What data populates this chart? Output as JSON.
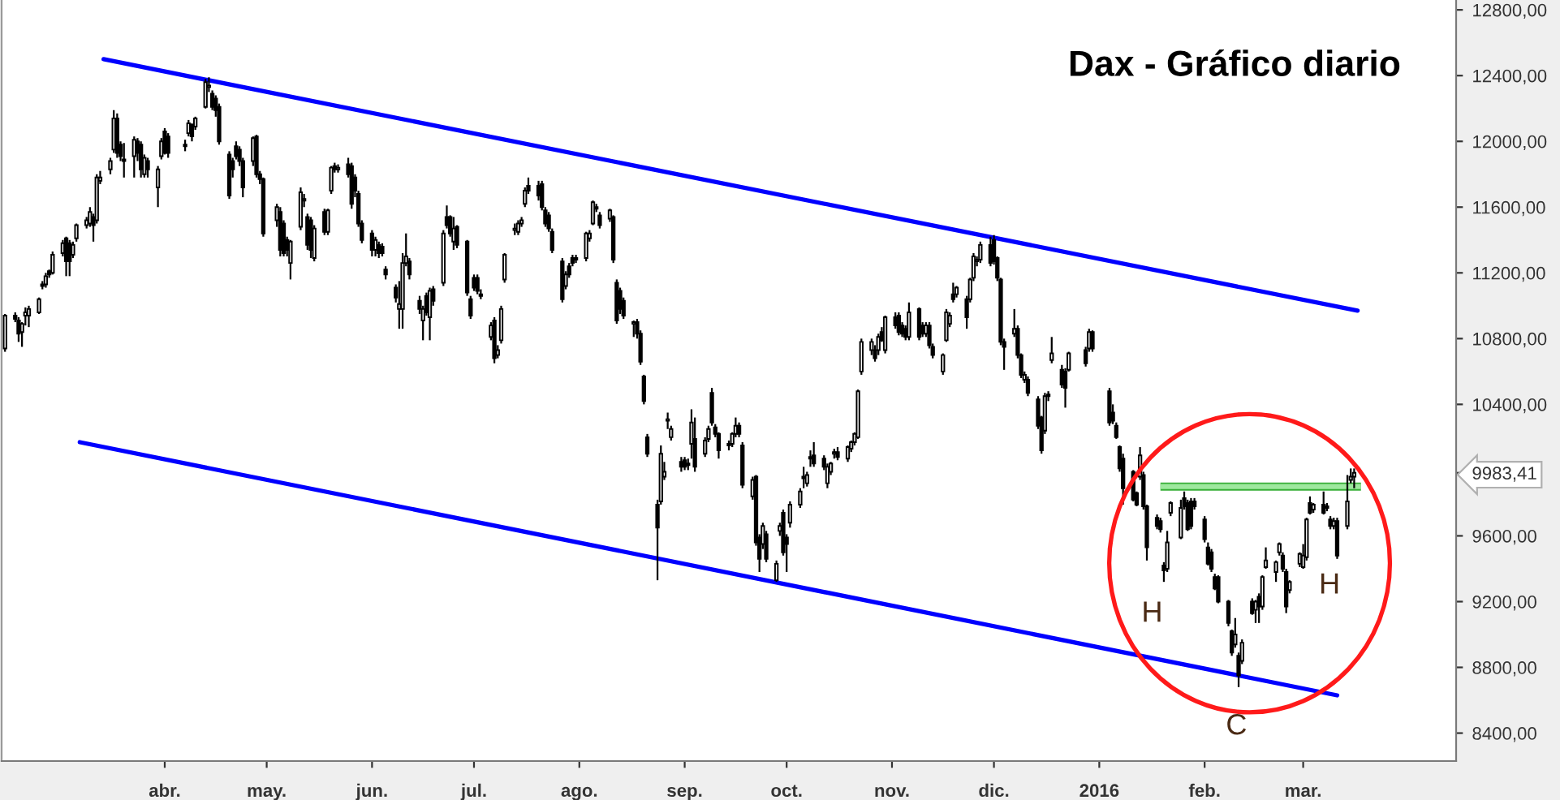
{
  "chart_data": {
    "type": "candlestick",
    "title": "Dax - Gráfico diario",
    "color": "#000000",
    "x": [
      "2015-02-13",
      "2015-02-16",
      "2015-02-17",
      "2015-02-18",
      "2015-02-19",
      "2015-02-20",
      "2015-02-23",
      "2015-02-24",
      "2015-02-25",
      "2015-02-26",
      "2015-02-27",
      "2015-03-02",
      "2015-03-03",
      "2015-03-04",
      "2015-03-05",
      "2015-03-06",
      "2015-03-09",
      "2015-03-10",
      "2015-03-11",
      "2015-03-12",
      "2015-03-13",
      "2015-03-16",
      "2015-03-17",
      "2015-03-18",
      "2015-03-19",
      "2015-03-20",
      "2015-03-23",
      "2015-03-24",
      "2015-03-25",
      "2015-03-26",
      "2015-03-27",
      "2015-03-30",
      "2015-03-31",
      "2015-04-01",
      "2015-04-02",
      "2015-04-07",
      "2015-04-08",
      "2015-04-09",
      "2015-04-10",
      "2015-04-13",
      "2015-04-14",
      "2015-04-15",
      "2015-04-16",
      "2015-04-17",
      "2015-04-20",
      "2015-04-21",
      "2015-04-22",
      "2015-04-23",
      "2015-04-24",
      "2015-04-27",
      "2015-04-28",
      "2015-04-29",
      "2015-04-30",
      "2015-05-04",
      "2015-05-05",
      "2015-05-06",
      "2015-05-07",
      "2015-05-08",
      "2015-05-11",
      "2015-05-12",
      "2015-05-13",
      "2015-05-14",
      "2015-05-15",
      "2015-05-18",
      "2015-05-19",
      "2015-05-20",
      "2015-05-21",
      "2015-05-22",
      "2015-05-25",
      "2015-05-26",
      "2015-05-27",
      "2015-05-28",
      "2015-05-29",
      "2015-06-01",
      "2015-06-02",
      "2015-06-03",
      "2015-06-04",
      "2015-06-05",
      "2015-06-08",
      "2015-06-09",
      "2015-06-10",
      "2015-06-11",
      "2015-06-12",
      "2015-06-15",
      "2015-06-16",
      "2015-06-17",
      "2015-06-18",
      "2015-06-19",
      "2015-06-22",
      "2015-06-23",
      "2015-06-24",
      "2015-06-25",
      "2015-06-26",
      "2015-06-29",
      "2015-06-30",
      "2015-07-01",
      "2015-07-02",
      "2015-07-03",
      "2015-07-06",
      "2015-07-07",
      "2015-07-08",
      "2015-07-09",
      "2015-07-10",
      "2015-07-13",
      "2015-07-14",
      "2015-07-15",
      "2015-07-16",
      "2015-07-17",
      "2015-07-20",
      "2015-07-21",
      "2015-07-22",
      "2015-07-23",
      "2015-07-24",
      "2015-07-27",
      "2015-07-28",
      "2015-07-29",
      "2015-07-30",
      "2015-07-31",
      "2015-08-03",
      "2015-08-04",
      "2015-08-05",
      "2015-08-06",
      "2015-08-07",
      "2015-08-10",
      "2015-08-11",
      "2015-08-12",
      "2015-08-13",
      "2015-08-14",
      "2015-08-17",
      "2015-08-18",
      "2015-08-19",
      "2015-08-20",
      "2015-08-21",
      "2015-08-24",
      "2015-08-25",
      "2015-08-26",
      "2015-08-27",
      "2015-08-28",
      "2015-08-31",
      "2015-09-01",
      "2015-09-02",
      "2015-09-03",
      "2015-09-04",
      "2015-09-07",
      "2015-09-08",
      "2015-09-09",
      "2015-09-10",
      "2015-09-11",
      "2015-09-14",
      "2015-09-15",
      "2015-09-16",
      "2015-09-17",
      "2015-09-18",
      "2015-09-21",
      "2015-09-22",
      "2015-09-23",
      "2015-09-24",
      "2015-09-25",
      "2015-09-28",
      "2015-09-29",
      "2015-09-30",
      "2015-10-01",
      "2015-10-02",
      "2015-10-05",
      "2015-10-06",
      "2015-10-07",
      "2015-10-08",
      "2015-10-09",
      "2015-10-12",
      "2015-10-13",
      "2015-10-14",
      "2015-10-15",
      "2015-10-16",
      "2015-10-19",
      "2015-10-20",
      "2015-10-21",
      "2015-10-22",
      "2015-10-23",
      "2015-10-26",
      "2015-10-27",
      "2015-10-28",
      "2015-10-29",
      "2015-10-30",
      "2015-11-02",
      "2015-11-03",
      "2015-11-04",
      "2015-11-05",
      "2015-11-06",
      "2015-11-09",
      "2015-11-10",
      "2015-11-11",
      "2015-11-12",
      "2015-11-13",
      "2015-11-16",
      "2015-11-17",
      "2015-11-18",
      "2015-11-19",
      "2015-11-20",
      "2015-11-23",
      "2015-11-24",
      "2015-11-25",
      "2015-11-26",
      "2015-11-27",
      "2015-11-30",
      "2015-12-01",
      "2015-12-02",
      "2015-12-03",
      "2015-12-04",
      "2015-12-07",
      "2015-12-08",
      "2015-12-09",
      "2015-12-10",
      "2015-12-11",
      "2015-12-14",
      "2015-12-15",
      "2015-12-16",
      "2015-12-17",
      "2015-12-18",
      "2015-12-21",
      "2015-12-22",
      "2015-12-23",
      "2015-12-28",
      "2015-12-29",
      "2015-12-30",
      "2016-01-04",
      "2016-01-05",
      "2016-01-06",
      "2016-01-07",
      "2016-01-08",
      "2016-01-11",
      "2016-01-12",
      "2016-01-13",
      "2016-01-14",
      "2016-01-15",
      "2016-01-18",
      "2016-01-19",
      "2016-01-20",
      "2016-01-21",
      "2016-01-22",
      "2016-01-25",
      "2016-01-26",
      "2016-01-27",
      "2016-01-28",
      "2016-01-29",
      "2016-02-01",
      "2016-02-02",
      "2016-02-03",
      "2016-02-04",
      "2016-02-05",
      "2016-02-08",
      "2016-02-09",
      "2016-02-10",
      "2016-02-11",
      "2016-02-12",
      "2016-02-15",
      "2016-02-16",
      "2016-02-17",
      "2016-02-18",
      "2016-02-19",
      "2016-02-22",
      "2016-02-23",
      "2016-02-24",
      "2016-02-25",
      "2016-02-26",
      "2016-02-29",
      "2016-03-01",
      "2016-03-02",
      "2016-03-03",
      "2016-03-04",
      "2016-03-07",
      "2016-03-08",
      "2016-03-09",
      "2016-03-10",
      "2016-03-11",
      "2016-03-14",
      "2016-03-15",
      "2016-03-16"
    ],
    "ohlc": [
      [
        10740,
        10950,
        10720,
        10940
      ],
      [
        10940,
        10960,
        10900,
        10920
      ],
      [
        10910,
        10930,
        10780,
        10830
      ],
      [
        10840,
        10900,
        10750,
        10890
      ],
      [
        10940,
        10990,
        10880,
        10960
      ],
      [
        10940,
        11000,
        10870,
        10980
      ],
      [
        10960,
        11050,
        10950,
        11040
      ],
      [
        11120,
        11150,
        11100,
        11130
      ],
      [
        11130,
        11200,
        11110,
        11180
      ],
      [
        11210,
        11220,
        11170,
        11190
      ],
      [
        11200,
        11330,
        11190,
        11310
      ],
      [
        11320,
        11400,
        11300,
        11380
      ],
      [
        11410,
        11420,
        11180,
        11270
      ],
      [
        11380,
        11400,
        11180,
        11270
      ],
      [
        11310,
        11390,
        11290,
        11370
      ],
      [
        11410,
        11500,
        11390,
        11490
      ],
      [
        11490,
        11540,
        11470,
        11520
      ],
      [
        11500,
        11600,
        11480,
        11570
      ],
      [
        11540,
        11560,
        11390,
        11490
      ],
      [
        11520,
        11800,
        11500,
        11780
      ],
      [
        11760,
        11820,
        11740,
        11780
      ],
      [
        11830,
        11900,
        11800,
        11880
      ],
      [
        11950,
        12190,
        11930,
        12140
      ],
      [
        12140,
        12170,
        11900,
        11930
      ],
      [
        11980,
        12000,
        11880,
        11910
      ],
      [
        11880,
        11990,
        11780,
        11890
      ],
      [
        11910,
        12030,
        11780,
        12010
      ],
      [
        12000,
        12020,
        11880,
        11930
      ],
      [
        11980,
        12000,
        11780,
        11830
      ],
      [
        11800,
        11920,
        11780,
        11900
      ],
      [
        11880,
        11900,
        11780,
        11830
      ],
      [
        11720,
        11850,
        11600,
        11830
      ],
      [
        11910,
        12020,
        11890,
        12000
      ],
      [
        12060,
        12080,
        11920,
        11930
      ],
      [
        12030,
        12050,
        11900,
        11930
      ],
      [
        11970,
        12010,
        11940,
        11980
      ],
      [
        12050,
        12130,
        12030,
        12110
      ],
      [
        12100,
        12110,
        12000,
        12030
      ],
      [
        12090,
        12150,
        12070,
        12140
      ],
      [
        12210,
        12380,
        12200,
        12360
      ],
      [
        12330,
        12390,
        12300,
        12340
      ],
      [
        12290,
        12310,
        12190,
        12210
      ],
      [
        12260,
        12280,
        12150,
        12190
      ],
      [
        12210,
        12230,
        11980,
        12000
      ],
      [
        11920,
        11940,
        11650,
        11670
      ],
      [
        11880,
        11900,
        11780,
        11830
      ],
      [
        11970,
        12000,
        11890,
        11910
      ],
      [
        11950,
        11970,
        11850,
        11880
      ],
      [
        11880,
        11900,
        11660,
        11720
      ],
      [
        11880,
        12030,
        11850,
        12020
      ],
      [
        12030,
        12040,
        11780,
        11800
      ],
      [
        11800,
        11820,
        11740,
        11770
      ],
      [
        11770,
        11780,
        11420,
        11440
      ],
      [
        11520,
        11620,
        11480,
        11600
      ],
      [
        11570,
        11600,
        11300,
        11340
      ],
      [
        11500,
        11520,
        11300,
        11320
      ],
      [
        11400,
        11420,
        11300,
        11340
      ],
      [
        11260,
        11400,
        11160,
        11390
      ],
      [
        11480,
        11720,
        11460,
        11690
      ],
      [
        11640,
        11680,
        11600,
        11650
      ],
      [
        11540,
        11560,
        11340,
        11370
      ],
      [
        11520,
        11540,
        11290,
        11340
      ],
      [
        11290,
        11490,
        11270,
        11470
      ],
      [
        11570,
        11590,
        11430,
        11450
      ],
      [
        11450,
        11590,
        11430,
        11580
      ],
      [
        11700,
        11850,
        11680,
        11840
      ],
      [
        11850,
        11870,
        11810,
        11830
      ],
      [
        11830,
        11860,
        11810,
        11840
      ],
      [
        11860,
        11900,
        11780,
        11800
      ],
      [
        11850,
        11870,
        11590,
        11620
      ],
      [
        11780,
        11800,
        11660,
        11700
      ],
      [
        11680,
        11700,
        11480,
        11500
      ],
      [
        11500,
        11520,
        11380,
        11400
      ],
      [
        11440,
        11460,
        11300,
        11340
      ],
      [
        11340,
        11420,
        11300,
        11400
      ],
      [
        11370,
        11390,
        11290,
        11320
      ],
      [
        11360,
        11380,
        11300,
        11320
      ],
      [
        11220,
        11240,
        11160,
        11190
      ],
      [
        11110,
        11130,
        11020,
        11050
      ],
      [
        10980,
        11150,
        10860,
        11010
      ],
      [
        10980,
        11320,
        10860,
        11260
      ],
      [
        11260,
        11440,
        11240,
        11300
      ],
      [
        11270,
        11290,
        11160,
        11190
      ],
      [
        11030,
        11060,
        10950,
        10980
      ],
      [
        10910,
        11000,
        10790,
        10980
      ],
      [
        11060,
        11080,
        10940,
        10960
      ],
      [
        10930,
        11110,
        10790,
        11090
      ],
      [
        11100,
        11120,
        11000,
        11030
      ],
      [
        11140,
        11460,
        11120,
        11440
      ],
      [
        11540,
        11610,
        11470,
        11490
      ],
      [
        11540,
        11550,
        11420,
        11440
      ],
      [
        11390,
        11540,
        11340,
        11470
      ],
      [
        11480,
        11490,
        11350,
        11370
      ],
      [
        11390,
        11400,
        11060,
        11080
      ],
      [
        11040,
        11060,
        10920,
        10940
      ],
      [
        11170,
        11190,
        11090,
        11110
      ],
      [
        11170,
        11190,
        11070,
        11090
      ],
      [
        11070,
        11100,
        11040,
        11060
      ],
      [
        10810,
        10900,
        10790,
        10880
      ],
      [
        10910,
        10930,
        10650,
        10680
      ],
      [
        10700,
        10760,
        10680,
        10730
      ],
      [
        10790,
        11000,
        10770,
        10980
      ],
      [
        11160,
        11320,
        11140,
        11310
      ],
      [
        11460,
        11500,
        11430,
        11470
      ],
      [
        11450,
        11520,
        11430,
        11500
      ],
      [
        11500,
        11540,
        11480,
        11520
      ],
      [
        11620,
        11720,
        11600,
        11700
      ],
      [
        11730,
        11780,
        11680,
        11700
      ],
      [
        11730,
        11760,
        11640,
        11670
      ],
      [
        11740,
        11760,
        11580,
        11600
      ],
      [
        11580,
        11600,
        11480,
        11500
      ],
      [
        11550,
        11570,
        11450,
        11470
      ],
      [
        11450,
        11470,
        11320,
        11340
      ],
      [
        11270,
        11290,
        11020,
        11040
      ],
      [
        11120,
        11210,
        11100,
        11190
      ],
      [
        11240,
        11260,
        11170,
        11190
      ],
      [
        11290,
        11310,
        11240,
        11260
      ],
      [
        11280,
        11310,
        11260,
        11290
      ],
      [
        11290,
        11450,
        11270,
        11440
      ],
      [
        11410,
        11460,
        11390,
        11440
      ],
      [
        11500,
        11640,
        11490,
        11630
      ],
      [
        11590,
        11620,
        11570,
        11600
      ],
      [
        11550,
        11570,
        11470,
        11490
      ],
      [
        11530,
        11590,
        11510,
        11580
      ],
      [
        11540,
        11550,
        11260,
        11280
      ],
      [
        11140,
        11160,
        10890,
        10910
      ],
      [
        11090,
        11110,
        10950,
        10980
      ],
      [
        11030,
        11050,
        10920,
        10940
      ],
      [
        10890,
        10910,
        10810,
        10900
      ],
      [
        10900,
        10920,
        10800,
        10830
      ],
      [
        10830,
        10850,
        10640,
        10660
      ],
      [
        10570,
        10580,
        10400,
        10420
      ],
      [
        10200,
        10220,
        10080,
        10100
      ],
      [
        9790,
        9820,
        9330,
        9650
      ],
      [
        9810,
        10150,
        9790,
        10100
      ],
      [
        9960,
        10050,
        9940,
        9990
      ],
      [
        10300,
        10350,
        10250,
        10310
      ],
      [
        10200,
        10270,
        10180,
        10250
      ],
      [
        10050,
        10080,
        9990,
        10020
      ],
      [
        10060,
        10080,
        10000,
        10020
      ],
      [
        10040,
        10070,
        10000,
        10030
      ],
      [
        10160,
        10370,
        10070,
        10290
      ],
      [
        10190,
        10320,
        9990,
        10020
      ],
      [
        10100,
        10200,
        10080,
        10180
      ],
      [
        10190,
        10270,
        10170,
        10250
      ],
      [
        10470,
        10500,
        10270,
        10290
      ],
      [
        10260,
        10280,
        10200,
        10220
      ],
      [
        10220,
        10230,
        10070,
        10120
      ],
      [
        10150,
        10180,
        10120,
        10160
      ],
      [
        10160,
        10230,
        10140,
        10220
      ],
      [
        10220,
        10320,
        10200,
        10270
      ],
      [
        10270,
        10290,
        10200,
        10220
      ],
      [
        10150,
        10170,
        9890,
        9910
      ],
      [
        9840,
        9960,
        9820,
        9940
      ],
      [
        9960,
        9970,
        9540,
        9560
      ],
      [
        9590,
        9610,
        9380,
        9460
      ],
      [
        9550,
        9680,
        9520,
        9660
      ],
      [
        9610,
        9630,
        9440,
        9460
      ],
      [
        9330,
        9450,
        9320,
        9430
      ],
      [
        9630,
        9680,
        9600,
        9660
      ],
      [
        9740,
        9760,
        9480,
        9500
      ],
      [
        9590,
        9610,
        9380,
        9550
      ],
      [
        9680,
        9810,
        9650,
        9790
      ],
      [
        9790,
        9890,
        9770,
        9870
      ],
      [
        9950,
        10020,
        9890,
        9960
      ],
      [
        9920,
        9990,
        9900,
        9970
      ],
      [
        10070,
        10120,
        10020,
        10080
      ],
      [
        10090,
        10170,
        10020,
        10040
      ],
      [
        10070,
        10090,
        10000,
        10020
      ],
      [
        9920,
        10040,
        9890,
        10020
      ],
      [
        9990,
        10050,
        9970,
        10040
      ],
      [
        10100,
        10130,
        10070,
        10110
      ],
      [
        10110,
        10140,
        10060,
        10080
      ],
      [
        10070,
        10150,
        10050,
        10140
      ],
      [
        10130,
        10180,
        10110,
        10170
      ],
      [
        10170,
        10230,
        10150,
        10220
      ],
      [
        10200,
        10490,
        10190,
        10480
      ],
      [
        10600,
        10800,
        10580,
        10780
      ],
      [
        10730,
        10800,
        10700,
        10780
      ],
      [
        10730,
        10760,
        10660,
        10680
      ],
      [
        10730,
        10830,
        10700,
        10810
      ],
      [
        10840,
        10870,
        10780,
        10790
      ],
      [
        10730,
        10940,
        10710,
        10930
      ],
      [
        10930,
        10960,
        10860,
        10880
      ],
      [
        10940,
        10960,
        10820,
        10840
      ],
      [
        10880,
        10900,
        10810,
        10830
      ],
      [
        10860,
        10880,
        10790,
        10810
      ],
      [
        10810,
        11020,
        10790,
        10960
      ],
      [
        10980,
        10990,
        10790,
        10810
      ],
      [
        10880,
        10900,
        10810,
        10830
      ],
      [
        10830,
        10900,
        10810,
        10880
      ],
      [
        10880,
        10900,
        10740,
        10760
      ],
      [
        10750,
        10770,
        10680,
        10700
      ],
      [
        10600,
        10710,
        10580,
        10700
      ],
      [
        10790,
        10980,
        10780,
        10960
      ],
      [
        10890,
        10960,
        10870,
        10940
      ],
      [
        11070,
        11140,
        11020,
        11040
      ],
      [
        11070,
        11120,
        11050,
        11110
      ],
      [
        11040,
        11060,
        10860,
        10930
      ],
      [
        11040,
        11170,
        11020,
        11160
      ],
      [
        11170,
        11320,
        11150,
        11300
      ],
      [
        11270,
        11300,
        11240,
        11280
      ],
      [
        11280,
        11390,
        11260,
        11370
      ],
      [
        11370,
        11420,
        11240,
        11260
      ],
      [
        11400,
        11430,
        11250,
        11270
      ],
      [
        11290,
        11300,
        11150,
        11170
      ],
      [
        11160,
        11170,
        10760,
        10780
      ],
      [
        10780,
        10800,
        10610,
        10750
      ],
      [
        10830,
        10980,
        10810,
        10860
      ],
      [
        10860,
        10880,
        10680,
        10700
      ],
      [
        10700,
        10710,
        10560,
        10580
      ],
      [
        10550,
        10600,
        10530,
        10580
      ],
      [
        10550,
        10570,
        10450,
        10470
      ],
      [
        10430,
        10450,
        10250,
        10270
      ],
      [
        10320,
        10330,
        10100,
        10120
      ],
      [
        10240,
        10470,
        10220,
        10450
      ],
      [
        10450,
        10480,
        10420,
        10460
      ],
      [
        10670,
        10810,
        10650,
        10710
      ],
      [
        10610,
        10640,
        10500,
        10520
      ],
      [
        10600,
        10620,
        10380,
        10500
      ],
      [
        10610,
        10720,
        10600,
        10710
      ],
      [
        10730,
        10750,
        10630,
        10650
      ],
      [
        10740,
        10860,
        10720,
        10840
      ],
      [
        10840,
        10850,
        10720,
        10740
      ],
      [
        10480,
        10500,
        10270,
        10290
      ],
      [
        10350,
        10400,
        10280,
        10300
      ],
      [
        10270,
        10290,
        10190,
        10200
      ],
      [
        10140,
        10150,
        9990,
        10010
      ],
      [
        10070,
        10100,
        9790,
        9890
      ],
      [
        9990,
        10000,
        9810,
        9820
      ],
      [
        9860,
        9870,
        9780,
        9790
      ],
      [
        9960,
        10140,
        9940,
        10090
      ],
      [
        9970,
        9990,
        9760,
        9780
      ],
      [
        9780,
        9790,
        9450,
        9530
      ],
      [
        9710,
        9730,
        9640,
        9660
      ],
      [
        9690,
        9710,
        9620,
        9640
      ],
      [
        9420,
        9440,
        9320,
        9390
      ],
      [
        9400,
        9630,
        9380,
        9560
      ],
      [
        9740,
        9810,
        9720,
        9800
      ],
      [
        9590,
        9820,
        9580,
        9770
      ],
      [
        9830,
        9870,
        9760,
        9780
      ],
      [
        9800,
        9820,
        9630,
        9640
      ],
      [
        9810,
        9830,
        9640,
        9660
      ],
      [
        9810,
        9830,
        9760,
        9780
      ],
      [
        9700,
        9720,
        9560,
        9580
      ],
      [
        9530,
        9560,
        9420,
        9430
      ],
      [
        9500,
        9520,
        9380,
        9400
      ],
      [
        9350,
        9370,
        9270,
        9280
      ],
      [
        9350,
        9360,
        9190,
        9200
      ],
      [
        9200,
        9210,
        9050,
        9070
      ],
      [
        9020,
        9030,
        8870,
        8890
      ],
      [
        8940,
        9100,
        8920,
        9000
      ],
      [
        8870,
        8890,
        8680,
        8750
      ],
      [
        8840,
        8970,
        8820,
        8950
      ],
      [
        9200,
        9220,
        9120,
        9130
      ],
      [
        9150,
        9210,
        9070,
        9200
      ],
      [
        9230,
        9250,
        9070,
        9170
      ],
      [
        9170,
        9360,
        9150,
        9350
      ],
      [
        9410,
        9530,
        9400,
        9450
      ],
      [
        9380,
        9450,
        9320,
        9440
      ],
      [
        9500,
        9560,
        9480,
        9550
      ],
      [
        9480,
        9500,
        9380,
        9400
      ],
      [
        9380,
        9400,
        9130,
        9170
      ],
      [
        9270,
        9330,
        9250,
        9320
      ],
      [
        9430,
        9500,
        9410,
        9490
      ],
      [
        9410,
        9550,
        9400,
        9480
      ],
      [
        9470,
        9710,
        9450,
        9700
      ],
      [
        9800,
        9840,
        9730,
        9740
      ],
      [
        9760,
        9800,
        9740,
        9790
      ],
      [
        9790,
        9870,
        9730,
        9740
      ],
      [
        9770,
        9800,
        9750,
        9780
      ],
      [
        9700,
        9720,
        9640,
        9660
      ],
      [
        9660,
        9710,
        9640,
        9690
      ],
      [
        9690,
        9710,
        9460,
        9480
      ],
      [
        9660,
        9970,
        9640,
        9810
      ],
      [
        9940,
        10010,
        9920,
        9960
      ],
      [
        9960,
        10010,
        9890,
        9983.41
      ]
    ],
    "series": [
      {
        "type": "line",
        "color": "#0000ff",
        "x": [
          "2015-03-14",
          "2016-03-17"
        ],
        "values": [
          12500,
          10970
        ]
      },
      {
        "type": "line",
        "color": "#0000ff",
        "x": [
          "2015-03-07",
          "2016-03-11"
        ],
        "values": [
          10170,
          8630
        ]
      },
      {
        "type": "line",
        "color": "#9ee89e",
        "x": [
          "2016-01-19",
          "2016-03-18"
        ],
        "values": [
          9900,
          9900
        ]
      }
    ],
    "xlim": [
      "2015-02-12",
      "2016-04-15"
    ],
    "xticks": [
      {
        "value": "2015-04-01",
        "label": "abr."
      },
      {
        "value": "2015-05-01",
        "label": "may."
      },
      {
        "value": "2015-06-01",
        "label": "jun."
      },
      {
        "value": "2015-07-01",
        "label": "jul."
      },
      {
        "value": "2015-08-01",
        "label": "ago."
      },
      {
        "value": "2015-09-01",
        "label": "sep."
      },
      {
        "value": "2015-10-01",
        "label": "oct."
      },
      {
        "value": "2015-11-01",
        "label": "nov."
      },
      {
        "value": "2015-12-01",
        "label": "dic."
      },
      {
        "value": "2016-01-01",
        "label": "2016"
      },
      {
        "value": "2016-02-01",
        "label": "feb."
      },
      {
        "value": "2016-03-01",
        "label": "mar."
      }
    ],
    "ylim": [
      8230,
      12860
    ],
    "yticks": [
      {
        "value": 8400,
        "label": "8400,00"
      },
      {
        "value": 8800,
        "label": "8800,00"
      },
      {
        "value": 9200,
        "label": "9200,00"
      },
      {
        "value": 9600,
        "label": "9600,00"
      },
      {
        "value": 9983.41,
        "label": "9983,41"
      },
      {
        "value": 10400,
        "label": "10400,00"
      },
      {
        "value": 10800,
        "label": "10800,00"
      },
      {
        "value": 11200,
        "label": "11200,00"
      },
      {
        "value": 11600,
        "label": "11600,00"
      },
      {
        "value": 12000,
        "label": "12000,00"
      },
      {
        "value": 12400,
        "label": "12400,00"
      },
      {
        "value": 12800,
        "label": "12800,00"
      }
    ],
    "annotations": [
      "H",
      "C",
      "H"
    ]
  }
}
